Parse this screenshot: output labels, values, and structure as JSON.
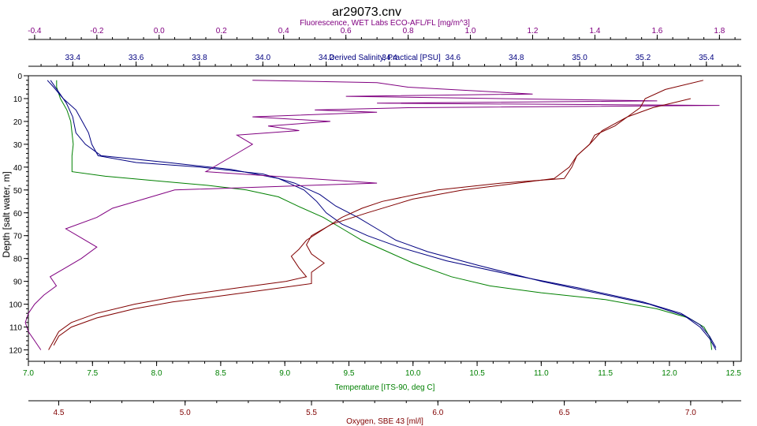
{
  "chart_data": {
    "type": "line",
    "title": "ar29073.cnv",
    "ylabel": "Depth [salt water, m]",
    "ylim": [
      0,
      125
    ],
    "y_ticks": [
      0,
      10,
      20,
      30,
      40,
      50,
      60,
      70,
      80,
      90,
      100,
      110,
      120
    ],
    "y_inverted": true,
    "grid": false,
    "axes": [
      {
        "id": "fluor",
        "label": "Fluorescence, WET Labs ECO-AFL/FL [mg/m^3]",
        "position": "top",
        "range": [
          -0.42,
          1.87
        ],
        "ticks": [
          -0.4,
          -0.2,
          0.0,
          0.2,
          0.4,
          0.6,
          0.8,
          1.0,
          1.2,
          1.4,
          1.6,
          1.8
        ],
        "tick_labels": [
          "-0.4",
          "-0.2",
          "0.0",
          "0.2",
          "0.4",
          "0.6",
          "0.8",
          "1.0",
          "1.2",
          "1.4",
          "1.6",
          "1.8"
        ],
        "color": "#800080"
      },
      {
        "id": "sal",
        "label": "Derived Salinity, Practical [PSU]",
        "position": "top",
        "range": [
          33.26,
          35.51
        ],
        "ticks": [
          33.4,
          33.6,
          33.8,
          34.0,
          34.2,
          34.4,
          34.6,
          34.8,
          35.0,
          35.2,
          35.4
        ],
        "tick_labels": [
          "33.4",
          "33.6",
          "33.8",
          "34.0",
          "34.2",
          "34.4",
          "34.6",
          "34.8",
          "35.0",
          "35.2",
          "35.4"
        ],
        "color": "#000080"
      },
      {
        "id": "temp",
        "label": "Temperature [ITS-90, deg C]",
        "position": "bottom",
        "range": [
          7.0,
          12.56
        ],
        "ticks": [
          7.0,
          7.5,
          8.0,
          8.5,
          9.0,
          9.5,
          10.0,
          10.5,
          11.0,
          11.5,
          12.0,
          12.5
        ],
        "tick_labels": [
          "7.0",
          "7.5",
          "8.0",
          "8.5",
          "9.0",
          "9.5",
          "10.0",
          "10.5",
          "11.0",
          "11.5",
          "12.0",
          "12.5"
        ],
        "color": "#008000"
      },
      {
        "id": "oxy",
        "label": "Oxygen, SBE 43 [ml/l]",
        "position": "bottom",
        "range": [
          4.38,
          7.2
        ],
        "ticks": [
          4.5,
          5.0,
          5.5,
          6.0,
          6.5,
          7.0
        ],
        "tick_labels": [
          "4.5",
          "5.0",
          "5.5",
          "6.0",
          "6.5",
          "7.0"
        ],
        "color": "#800000"
      }
    ],
    "series": [
      {
        "axis": "temp",
        "color": "#008000",
        "values": [
          [
            7.22,
            2
          ],
          [
            7.22,
            5
          ],
          [
            7.25,
            10
          ],
          [
            7.3,
            15
          ],
          [
            7.33,
            20
          ],
          [
            7.34,
            25
          ],
          [
            7.35,
            30
          ],
          [
            7.34,
            35
          ],
          [
            7.34,
            40
          ],
          [
            7.34,
            42
          ],
          [
            7.6,
            44
          ],
          [
            8.0,
            46
          ],
          [
            8.4,
            48
          ],
          [
            8.7,
            50
          ],
          [
            8.95,
            53
          ],
          [
            9.1,
            57
          ],
          [
            9.3,
            62
          ],
          [
            9.45,
            67
          ],
          [
            9.6,
            72
          ],
          [
            9.8,
            77
          ],
          [
            10.0,
            82
          ],
          [
            10.3,
            88
          ],
          [
            10.6,
            92
          ],
          [
            11.0,
            95
          ],
          [
            11.5,
            98
          ],
          [
            11.9,
            102
          ],
          [
            12.15,
            106
          ],
          [
            12.27,
            110
          ],
          [
            12.32,
            115
          ],
          [
            12.33,
            120
          ]
        ]
      },
      {
        "axis": "sal",
        "color": "#000080",
        "values": [
          [
            33.32,
            2
          ],
          [
            33.34,
            5
          ],
          [
            33.37,
            10
          ],
          [
            33.41,
            15
          ],
          [
            33.43,
            20
          ],
          [
            33.45,
            25
          ],
          [
            33.46,
            30
          ],
          [
            33.48,
            35
          ],
          [
            33.6,
            38
          ],
          [
            33.8,
            40
          ],
          [
            34.0,
            43
          ],
          [
            34.1,
            47
          ],
          [
            34.18,
            52
          ],
          [
            34.23,
            57
          ],
          [
            34.3,
            62
          ],
          [
            34.36,
            67
          ],
          [
            34.42,
            72
          ],
          [
            34.52,
            77
          ],
          [
            34.68,
            83
          ],
          [
            34.88,
            90
          ],
          [
            35.05,
            95
          ],
          [
            35.22,
            100
          ],
          [
            35.33,
            105
          ],
          [
            35.38,
            110
          ],
          [
            35.41,
            115
          ],
          [
            35.43,
            120
          ]
        ]
      },
      {
        "axis": "sal",
        "color": "#000080",
        "values": [
          [
            33.33,
            2
          ],
          [
            33.35,
            6
          ],
          [
            33.38,
            12
          ],
          [
            33.4,
            18
          ],
          [
            33.41,
            25
          ],
          [
            33.44,
            30
          ],
          [
            33.49,
            35
          ],
          [
            33.7,
            38
          ],
          [
            33.9,
            41
          ],
          [
            34.05,
            45
          ],
          [
            34.13,
            50
          ],
          [
            34.17,
            55
          ],
          [
            34.2,
            60
          ],
          [
            34.25,
            65
          ],
          [
            34.33,
            70
          ],
          [
            34.43,
            75
          ],
          [
            34.58,
            81
          ],
          [
            34.78,
            87
          ],
          [
            35.0,
            93
          ],
          [
            35.2,
            99
          ],
          [
            35.32,
            104
          ],
          [
            35.38,
            109
          ],
          [
            35.41,
            114
          ],
          [
            35.43,
            119
          ]
        ]
      },
      {
        "axis": "fluor",
        "color": "#800080",
        "values": [
          [
            0.3,
            2
          ],
          [
            0.7,
            3
          ],
          [
            0.8,
            5
          ],
          [
            1.2,
            8
          ],
          [
            0.6,
            9
          ],
          [
            1.6,
            11
          ],
          [
            0.7,
            12
          ],
          [
            1.8,
            13
          ],
          [
            0.8,
            14
          ],
          [
            0.5,
            15
          ],
          [
            0.7,
            16
          ],
          [
            0.3,
            18
          ],
          [
            0.55,
            20
          ],
          [
            0.35,
            22
          ],
          [
            0.45,
            24
          ],
          [
            0.25,
            26
          ],
          [
            0.3,
            30
          ],
          [
            0.25,
            34
          ],
          [
            0.2,
            38
          ],
          [
            0.15,
            42
          ],
          [
            0.7,
            47
          ],
          [
            0.05,
            50
          ],
          [
            -0.05,
            54
          ],
          [
            -0.15,
            58
          ],
          [
            -0.2,
            62
          ],
          [
            -0.3,
            67
          ],
          [
            -0.25,
            71
          ],
          [
            -0.2,
            75
          ],
          [
            -0.25,
            80
          ],
          [
            -0.3,
            84
          ],
          [
            -0.35,
            88
          ],
          [
            -0.33,
            92
          ],
          [
            -0.37,
            96
          ],
          [
            -0.4,
            100
          ],
          [
            -0.42,
            104
          ],
          [
            -0.43,
            108
          ],
          [
            -0.42,
            112
          ],
          [
            -0.4,
            116
          ],
          [
            -0.38,
            120
          ]
        ]
      },
      {
        "axis": "oxy",
        "color": "#800000",
        "values": [
          [
            7.05,
            2
          ],
          [
            6.9,
            6
          ],
          [
            6.82,
            10
          ],
          [
            6.8,
            14
          ],
          [
            6.75,
            18
          ],
          [
            6.7,
            22
          ],
          [
            6.62,
            26
          ],
          [
            6.6,
            30
          ],
          [
            6.55,
            35
          ],
          [
            6.53,
            40
          ],
          [
            6.5,
            45
          ],
          [
            6.25,
            47
          ],
          [
            6.0,
            50
          ],
          [
            5.78,
            55
          ],
          [
            5.7,
            58
          ],
          [
            5.62,
            62
          ],
          [
            5.55,
            67
          ],
          [
            5.48,
            72
          ],
          [
            5.45,
            76
          ],
          [
            5.42,
            79
          ],
          [
            5.45,
            84
          ],
          [
            5.48,
            88
          ],
          [
            5.4,
            90
          ],
          [
            5.2,
            93
          ],
          [
            5.0,
            96
          ],
          [
            4.8,
            100
          ],
          [
            4.65,
            104
          ],
          [
            4.55,
            108
          ],
          [
            4.5,
            112
          ],
          [
            4.48,
            116
          ],
          [
            4.46,
            120
          ]
        ]
      },
      {
        "axis": "oxy",
        "color": "#800000",
        "values": [
          [
            7.0,
            10
          ],
          [
            6.85,
            14
          ],
          [
            6.75,
            18
          ],
          [
            6.65,
            24
          ],
          [
            6.6,
            30
          ],
          [
            6.55,
            35
          ],
          [
            6.52,
            40
          ],
          [
            6.46,
            45
          ],
          [
            6.1,
            50
          ],
          [
            5.9,
            54
          ],
          [
            5.72,
            60
          ],
          [
            5.58,
            65
          ],
          [
            5.5,
            70
          ],
          [
            5.48,
            74
          ],
          [
            5.5,
            78
          ],
          [
            5.55,
            82
          ],
          [
            5.5,
            86
          ],
          [
            5.5,
            91
          ],
          [
            5.3,
            94
          ],
          [
            5.1,
            97
          ],
          [
            4.95,
            99
          ],
          [
            4.8,
            102
          ],
          [
            4.65,
            106
          ],
          [
            4.55,
            110
          ],
          [
            4.5,
            114
          ],
          [
            4.48,
            118
          ]
        ]
      }
    ]
  }
}
